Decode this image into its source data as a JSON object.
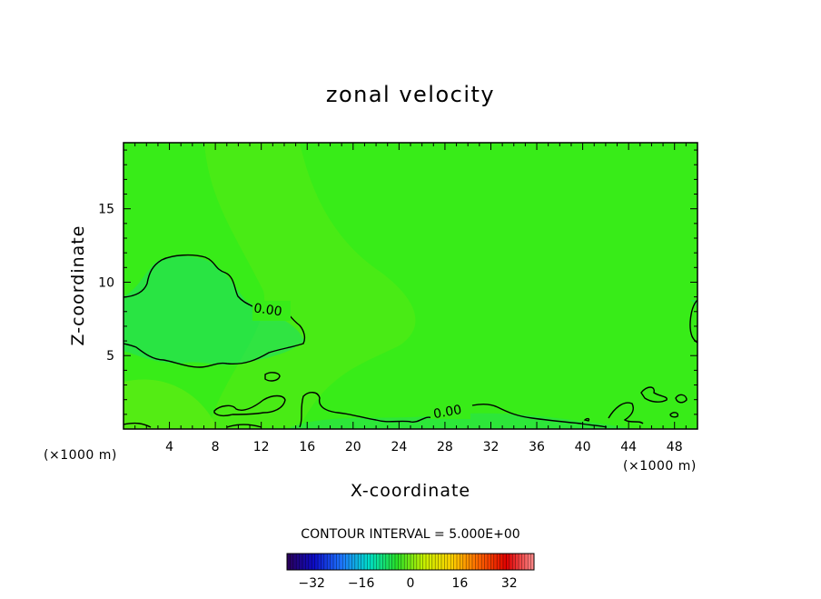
{
  "chart_data": {
    "type": "heatmap",
    "title": "zonal velocity",
    "xlabel": "X-coordinate",
    "ylabel": "Z-coordinate",
    "x_unit": "(×1000 m)",
    "y_unit": "(×1000 m)",
    "xlim": [
      0,
      50
    ],
    "ylim": [
      0,
      19.5
    ],
    "xticks": [
      4,
      8,
      12,
      16,
      20,
      24,
      28,
      32,
      36,
      40,
      44,
      48
    ],
    "yticks": [
      5,
      10,
      15
    ],
    "contour_interval_text": "CONTOUR INTERVAL = 5.000E+00",
    "contour_labels": [
      "0.00",
      "0.00"
    ],
    "colorbar": {
      "range": [
        -40,
        40
      ],
      "ticks": [
        -32,
        -16,
        0,
        16,
        32
      ],
      "stops": [
        "#2a0057",
        "#0c0cc8",
        "#1e78ff",
        "#00e0c8",
        "#28e028",
        "#c8f000",
        "#ffd200",
        "#ff6400",
        "#e00000",
        "#ff8c8c"
      ]
    },
    "field_colors": {
      "background": "#38ec18",
      "negative_weak": "#20e060",
      "positive_weak": "#70ec10"
    }
  }
}
